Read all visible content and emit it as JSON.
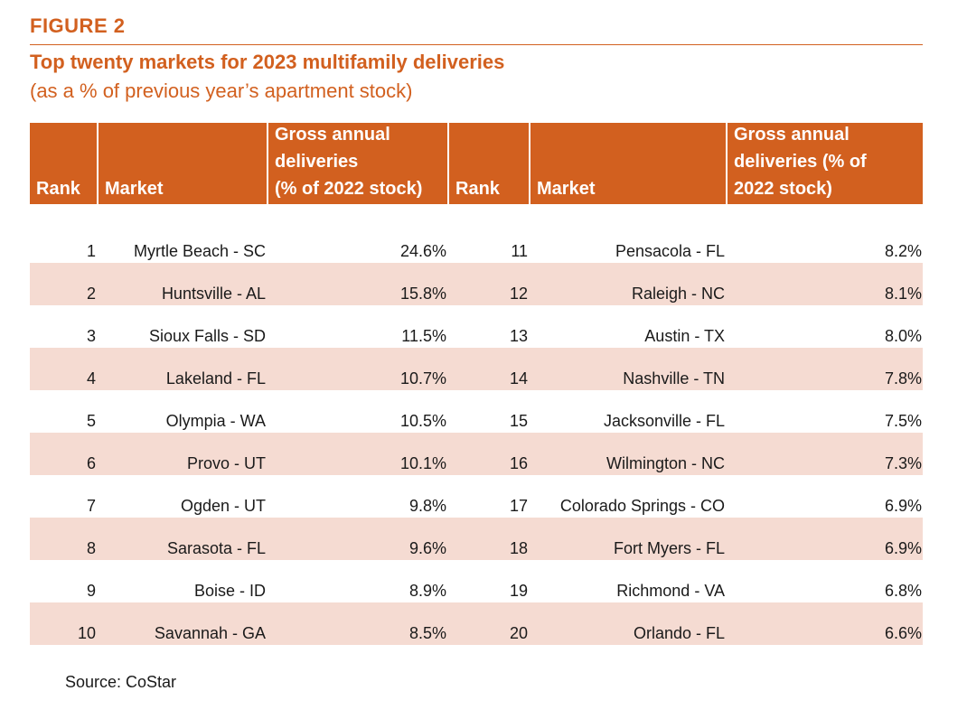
{
  "figure_label": "FIGURE 2",
  "title": "Top twenty markets for 2023 multifamily deliveries",
  "subtitle": "(as a % of previous year’s apartment stock)",
  "table": {
    "headers": {
      "rank1": "Rank",
      "market1": "Market",
      "gd1": "Gross annual deliveries (% of 2022 stock)",
      "rank2": "Rank",
      "market2": "Market",
      "gd2": "Gross annual deliveries (% of 2022 stock)"
    },
    "header_lines": {
      "gd1": [
        "Gross annual",
        "deliveries",
        "(% of 2022 stock)"
      ],
      "gd2": [
        "Gross annual",
        "deliveries (% of",
        "2022 stock)"
      ]
    },
    "rows": [
      {
        "rank1": "1",
        "market1": "Myrtle Beach - SC",
        "value1": "24.6%",
        "rank2": "11",
        "market2": "Pensacola - FL",
        "value2": "8.2%"
      },
      {
        "rank1": "2",
        "market1": "Huntsville - AL",
        "value1": "15.8%",
        "rank2": "12",
        "market2": "Raleigh - NC",
        "value2": "8.1%"
      },
      {
        "rank1": "3",
        "market1": "Sioux Falls - SD",
        "value1": "11.5%",
        "rank2": "13",
        "market2": "Austin - TX",
        "value2": "8.0%"
      },
      {
        "rank1": "4",
        "market1": "Lakeland - FL",
        "value1": "10.7%",
        "rank2": "14",
        "market2": "Nashville - TN",
        "value2": "7.8%"
      },
      {
        "rank1": "5",
        "market1": "Olympia - WA",
        "value1": "10.5%",
        "rank2": "15",
        "market2": "Jacksonville - FL",
        "value2": "7.5%"
      },
      {
        "rank1": "6",
        "market1": "Provo - UT",
        "value1": "10.1%",
        "rank2": "16",
        "market2": "Wilmington - NC",
        "value2": "7.3%"
      },
      {
        "rank1": "7",
        "market1": "Ogden - UT",
        "value1": "9.8%",
        "rank2": "17",
        "market2": "Colorado Springs - CO",
        "value2": "6.9%"
      },
      {
        "rank1": "8",
        "market1": "Sarasota - FL",
        "value1": "9.6%",
        "rank2": "18",
        "market2": "Fort Myers - FL",
        "value2": "6.9%"
      },
      {
        "rank1": "9",
        "market1": "Boise - ID",
        "value1": "8.9%",
        "rank2": "19",
        "market2": "Richmond - VA",
        "value2": "6.8%"
      },
      {
        "rank1": "10",
        "market1": "Savannah - GA",
        "value1": "8.5%",
        "rank2": "20",
        "market2": "Orlando - FL",
        "value2": "6.6%"
      }
    ]
  },
  "source": "Source: CoStar",
  "colors": {
    "accent": "#d2601f",
    "band": "#f5dbd2"
  }
}
